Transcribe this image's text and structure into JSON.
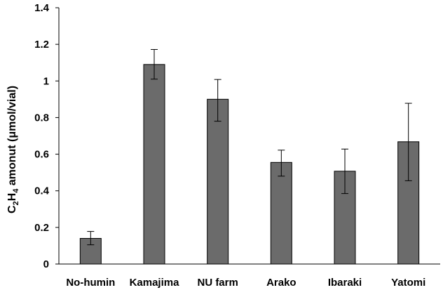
{
  "chart_data": {
    "type": "bar",
    "categories": [
      "No-humin",
      "Kamajima",
      "NU farm",
      "Arako",
      "Ibaraki",
      "Yatomi"
    ],
    "values": [
      0.14,
      1.09,
      0.9,
      0.555,
      0.507,
      0.668
    ],
    "error_low": [
      0.105,
      1.01,
      0.78,
      0.48,
      0.385,
      0.455
    ],
    "error_high": [
      0.178,
      1.172,
      1.008,
      0.622,
      0.628,
      0.878
    ],
    "ylabel": {
      "base": "C",
      "sub1": "2",
      "mid": "H",
      "sub2": "4",
      "rest": " amonut (μmol/vial)"
    },
    "ylim": [
      0,
      1.4
    ],
    "yticks": [
      0,
      0.2,
      0.4,
      0.6,
      0.8,
      1,
      1.2,
      1.4
    ],
    "ytick_labels": [
      "0",
      "0.2",
      "0.4",
      "0.6",
      "0.8",
      "1",
      "1.2",
      "1.4"
    ],
    "bar_color": "#6b6b6b",
    "grid": false,
    "legend": "none"
  }
}
